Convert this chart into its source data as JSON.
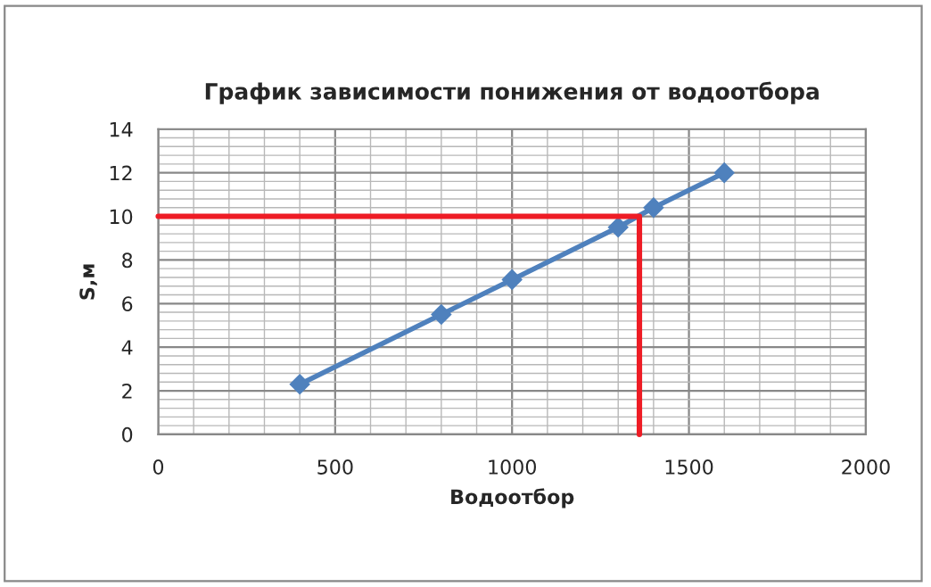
{
  "chart_data": {
    "type": "line",
    "title": "График зависимости понижения от водоотбора",
    "xlabel": "Водоотбор",
    "ylabel": "S,м",
    "series": [
      {
        "color": "#4f81bd",
        "marker": "diamond",
        "x": [
          400,
          800,
          1000,
          1300,
          1400,
          1600
        ],
        "values": [
          2.3,
          5.5,
          7.1,
          9.5,
          10.4,
          12.0
        ]
      },
      {
        "color": "#ee1c25",
        "marker": "none",
        "x": [
          0,
          1360,
          1360
        ],
        "values": [
          10,
          10,
          0
        ]
      }
    ],
    "xlim": [
      0,
      2000
    ],
    "xticks": [
      0,
      500,
      1000,
      1500,
      2000
    ],
    "ylim": [
      0,
      14
    ],
    "yticks": [
      0,
      2,
      4,
      6,
      8,
      10,
      12,
      14
    ],
    "grid": true
  }
}
